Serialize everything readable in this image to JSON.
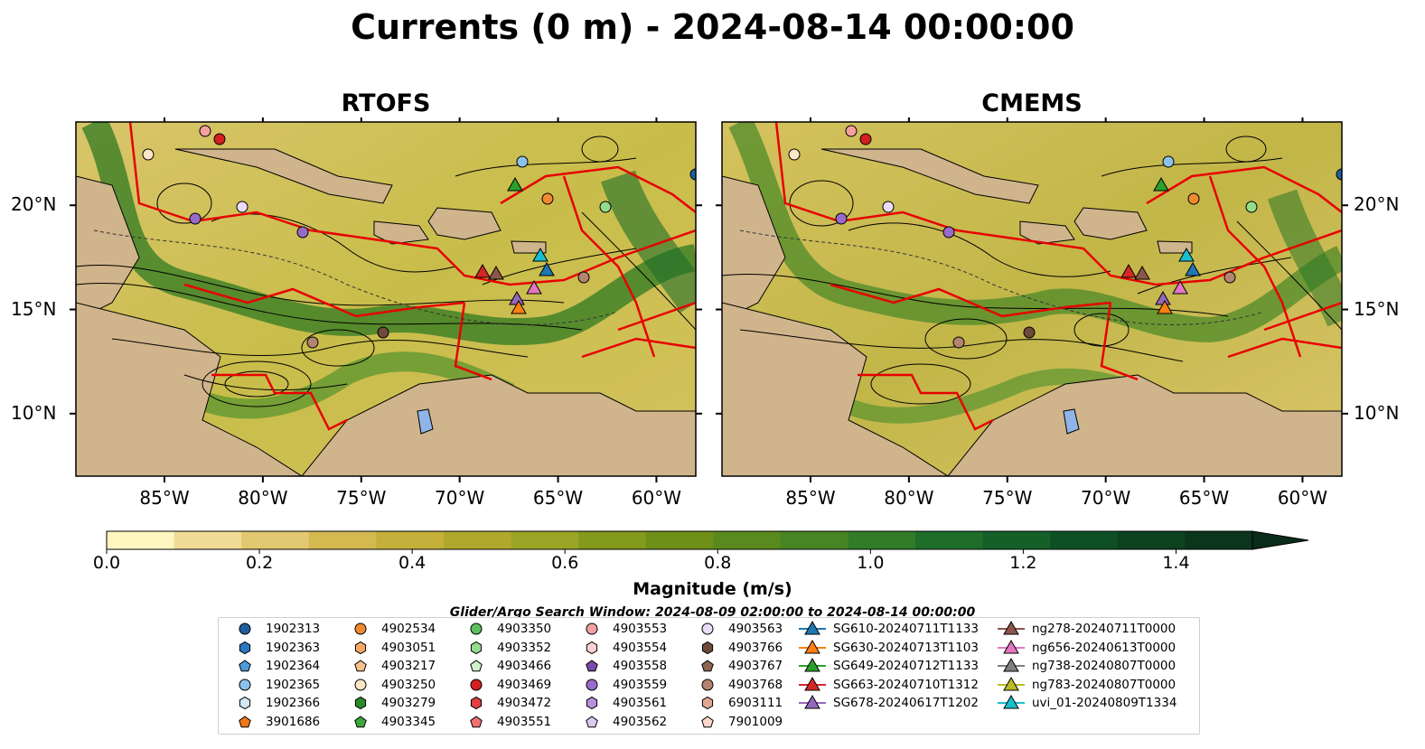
{
  "title": "Currents (0 m) - 2024-08-14 00:00:00",
  "panels": [
    {
      "title": "RTOFS"
    },
    {
      "title": "CMEMS"
    }
  ],
  "axes": {
    "x_ticks": [
      "85°W",
      "80°W",
      "75°W",
      "70°W",
      "65°W",
      "60°W"
    ],
    "y_ticks": [
      "20°N",
      "15°N",
      "10°N"
    ],
    "lon_range": [
      -89.5,
      -58.0
    ],
    "lat_range": [
      7.0,
      24.0
    ]
  },
  "colorbar": {
    "label": "Magnitude (m/s)",
    "ticks": [
      "0.0",
      "0.2",
      "0.4",
      "0.6",
      "0.8",
      "1.0",
      "1.2",
      "1.4"
    ],
    "range": [
      0.0,
      1.5
    ],
    "extend": "max",
    "colors": [
      "#fff6c0",
      "#f0dc96",
      "#e2c870",
      "#d4b850",
      "#c4b03a",
      "#b0a82c",
      "#9ca426",
      "#849a1c",
      "#6e9018",
      "#5a8a1e",
      "#468424",
      "#327c28",
      "#1e6e2a",
      "#146028",
      "#0e5024",
      "#0c4220",
      "#0b361c",
      "#0a2c18"
    ]
  },
  "search_window": "Glider/Argo Search Window: 2024-08-09 02:00:00 to 2024-08-14 00:00:00",
  "legend": {
    "columns": [
      [
        {
          "label": "1902313",
          "shape": "circle",
          "color": "#1f5f9f"
        },
        {
          "label": "1902363",
          "shape": "hexagon",
          "color": "#2b78c0"
        },
        {
          "label": "1902364",
          "shape": "pentagon",
          "color": "#4f9ad8"
        },
        {
          "label": "1902365",
          "shape": "circle",
          "color": "#8cc2ea"
        },
        {
          "label": "1902366",
          "shape": "hexagon",
          "color": "#d2e8f8"
        },
        {
          "label": "3901686",
          "shape": "pentagon",
          "color": "#f07818"
        }
      ],
      [
        {
          "label": "4902534",
          "shape": "circle",
          "color": "#f08a30"
        },
        {
          "label": "4903051",
          "shape": "hexagon",
          "color": "#f6a862"
        },
        {
          "label": "4903217",
          "shape": "pentagon",
          "color": "#f8c08a"
        },
        {
          "label": "4903250",
          "shape": "circle",
          "color": "#fde6c8"
        },
        {
          "label": "4903279",
          "shape": "hexagon",
          "color": "#2a8a2a"
        },
        {
          "label": "4903345",
          "shape": "pentagon",
          "color": "#3aa83a"
        }
      ],
      [
        {
          "label": "4903350",
          "shape": "circle",
          "color": "#5cc05c"
        },
        {
          "label": "4903352",
          "shape": "hexagon",
          "color": "#94dc8c"
        },
        {
          "label": "4903466",
          "shape": "pentagon",
          "color": "#cff0c8"
        },
        {
          "label": "4903469",
          "shape": "circle",
          "color": "#d42020"
        },
        {
          "label": "4903472",
          "shape": "hexagon",
          "color": "#e04040"
        },
        {
          "label": "4903551",
          "shape": "pentagon",
          "color": "#f07070"
        }
      ],
      [
        {
          "label": "4903553",
          "shape": "circle",
          "color": "#f4a0a0"
        },
        {
          "label": "4903554",
          "shape": "hexagon",
          "color": "#fcd0d0"
        },
        {
          "label": "4903558",
          "shape": "pentagon",
          "color": "#7a4aa8"
        },
        {
          "label": "4903559",
          "shape": "circle",
          "color": "#9a6ac8"
        },
        {
          "label": "4903561",
          "shape": "hexagon",
          "color": "#b690dc"
        },
        {
          "label": "4903562",
          "shape": "pentagon",
          "color": "#dcc8f0"
        }
      ],
      [
        {
          "label": "4903563",
          "shape": "circle",
          "color": "#eadcf8"
        },
        {
          "label": "4903766",
          "shape": "hexagon",
          "color": "#6e4a3a"
        },
        {
          "label": "4903767",
          "shape": "pentagon",
          "color": "#8e6450"
        },
        {
          "label": "4903768",
          "shape": "circle",
          "color": "#b48470"
        },
        {
          "label": "6903111",
          "shape": "hexagon",
          "color": "#e0a890"
        },
        {
          "label": "7901009",
          "shape": "pentagon",
          "color": "#fcd8cc"
        }
      ],
      [
        {
          "label": "SG610-20240711T1133",
          "shape": "triangle",
          "color": "#1f77b4"
        },
        {
          "label": "SG630-20240713T1103",
          "shape": "triangle",
          "color": "#ff7f0e"
        },
        {
          "label": "SG649-20240712T1133",
          "shape": "triangle",
          "color": "#2ca02c"
        },
        {
          "label": "SG663-20240710T1312",
          "shape": "triangle",
          "color": "#d62728"
        },
        {
          "label": "SG678-20240617T1202",
          "shape": "triangle",
          "color": "#9467bd"
        }
      ],
      [
        {
          "label": "ng278-20240711T0000",
          "shape": "triangle",
          "color": "#8c564b"
        },
        {
          "label": "ng656-20240613T0000",
          "shape": "triangle",
          "color": "#e377c2"
        },
        {
          "label": "ng738-20240807T0000",
          "shape": "triangle",
          "color": "#7f7f7f"
        },
        {
          "label": "ng783-20240807T0000",
          "shape": "triangle",
          "color": "#bcbd22"
        },
        {
          "label": "uvi_01-20240809T1334",
          "shape": "triangle",
          "color": "#17becf"
        }
      ]
    ]
  }
}
